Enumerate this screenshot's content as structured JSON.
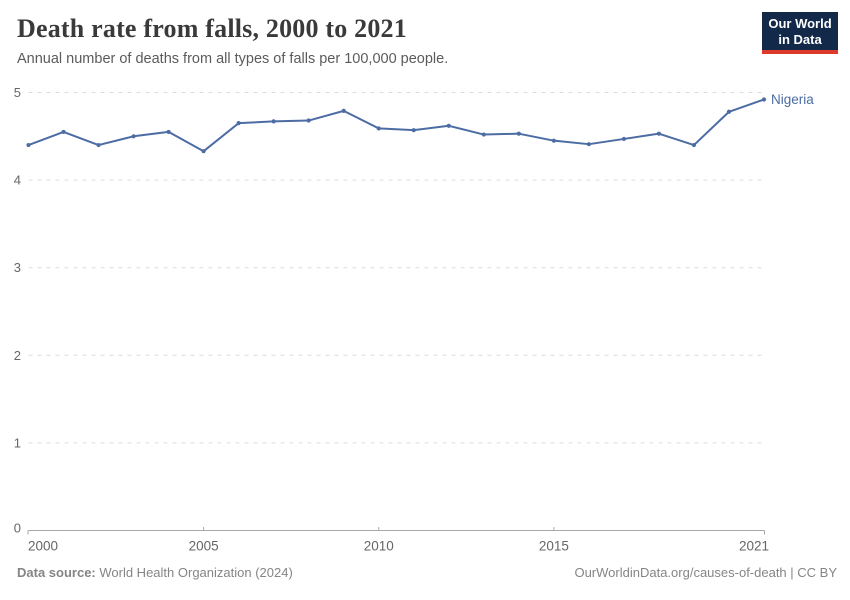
{
  "header": {
    "title": "Death rate from falls, 2000 to 2021",
    "subtitle": "Annual number of deaths from all types of falls per 100,000 people.",
    "logo": {
      "line1": "Our World",
      "line2": "in Data"
    }
  },
  "chart_data": {
    "type": "line",
    "title": "Death rate from falls, 2000 to 2021",
    "subtitle": "Annual number of deaths from all types of falls per 100,000 people.",
    "x": [
      2000,
      2001,
      2002,
      2003,
      2004,
      2005,
      2006,
      2007,
      2008,
      2009,
      2010,
      2011,
      2012,
      2013,
      2014,
      2015,
      2016,
      2017,
      2018,
      2019,
      2020,
      2021
    ],
    "series": [
      {
        "name": "Nigeria",
        "color": "#4c6ca4",
        "values": [
          4.4,
          4.55,
          4.4,
          4.5,
          4.55,
          4.33,
          4.65,
          4.67,
          4.68,
          4.79,
          4.59,
          4.57,
          4.62,
          4.52,
          4.53,
          4.45,
          4.41,
          4.47,
          4.53,
          4.4,
          4.78,
          4.92
        ]
      }
    ],
    "xlabel": "",
    "ylabel": "",
    "xlim": [
      2000,
      2021
    ],
    "ylim": [
      0,
      5
    ],
    "x_ticks": [
      2000,
      2005,
      2010,
      2015,
      2021
    ],
    "y_ticks": [
      0,
      1,
      2,
      3,
      4,
      5
    ],
    "grid": "horizontal-dashed",
    "legend": "end-of-line-label",
    "colors": {
      "gridline": "#dcdcdc",
      "axis": "#a8a8a8",
      "tick_label": "#666666"
    }
  },
  "footer": {
    "source_label": "Data source:",
    "source_value": " World Health Organization (2024)",
    "credit": "OurWorldinData.org/causes-of-death | CC BY"
  }
}
